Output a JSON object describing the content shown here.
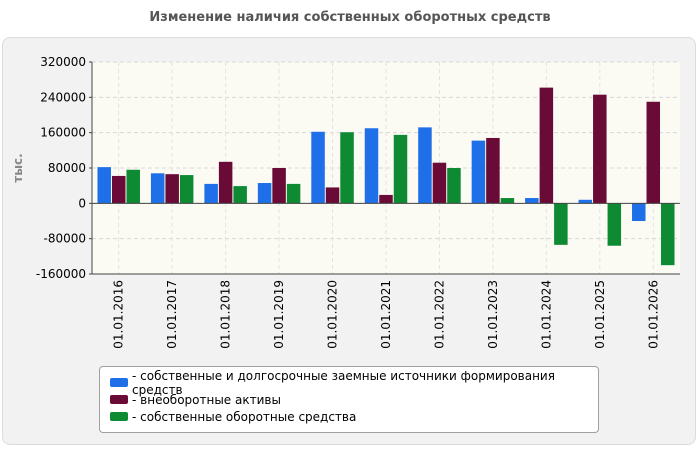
{
  "chart_data": {
    "type": "bar",
    "title": "Изменение наличия собственных оборотных средств",
    "ylabel": "тыс.",
    "xlabel": "",
    "ylim": [
      -160000,
      320000
    ],
    "yticks": [
      320000,
      240000,
      160000,
      80000,
      0,
      -80000,
      -160000
    ],
    "yticklabels": [
      "320000",
      "240000",
      "160000",
      "80000",
      "0",
      "-80000",
      "-160000"
    ],
    "grid": true,
    "legend_position": "bottom",
    "categories": [
      "01.01.2016",
      "01.01.2017",
      "01.01.2018",
      "01.01.2019",
      "01.01.2020",
      "01.01.2021",
      "01.01.2022",
      "01.01.2023",
      "01.01.2024",
      "01.01.2025",
      "01.01.2026"
    ],
    "series": [
      {
        "name": "- собственные и долгосрочные заемные источники формирования средств",
        "color": "#1e6fe8",
        "values": [
          82000,
          68000,
          44000,
          46000,
          162000,
          170000,
          172000,
          142000,
          12000,
          8000,
          -40000
        ]
      },
      {
        "name": "- внеоборотные активы",
        "color": "#6a0a36",
        "values": [
          62000,
          66000,
          94000,
          80000,
          36000,
          19000,
          92000,
          148000,
          262000,
          246000,
          230000
        ]
      },
      {
        "name": "- собственные оборотные средства",
        "color": "#0e8a33",
        "values": [
          76000,
          64000,
          39000,
          44000,
          161000,
          155000,
          80000,
          12000,
          -94000,
          -96000,
          -140000
        ]
      }
    ]
  }
}
